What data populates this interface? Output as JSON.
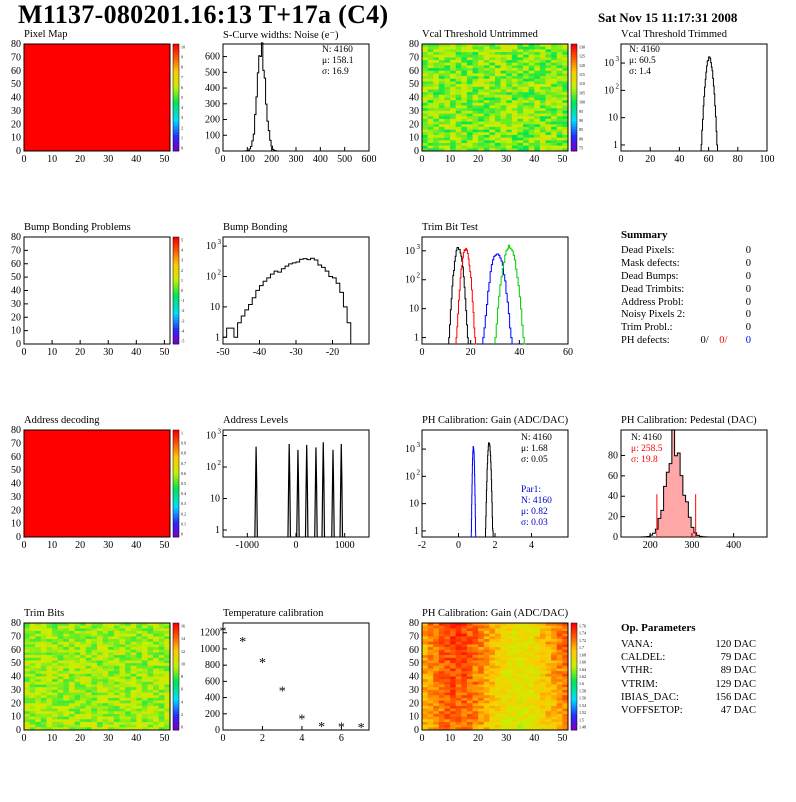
{
  "header": {
    "title": "M1137-080201.16:13 T+17a (C4)",
    "date": "Sat Nov 15 11:17:31 2008"
  },
  "panels": {
    "pixel_map": {
      "title": "Pixel Map"
    },
    "scurve": {
      "title": "S-Curve widths: Noise (e⁻)",
      "stats": [
        "N: 4160",
        "μ: 158.1",
        "σ: 16.9"
      ]
    },
    "vcal_untrimmed": {
      "title": "Vcal Threshold Untrimmed"
    },
    "vcal_trimmed": {
      "title": "Vcal Threshold Trimmed",
      "stats": [
        "N: 4160",
        "μ: 60.5",
        "σ:  1.4"
      ]
    },
    "bump_problems": {
      "title": "Bump Bonding Problems"
    },
    "bump_bonding": {
      "title": "Bump Bonding"
    },
    "trim_bit_test": {
      "title": "Trim Bit Test"
    },
    "address_decoding": {
      "title": "Address decoding"
    },
    "address_levels": {
      "title": "Address Levels"
    },
    "ph_gain": {
      "title": "PH Calibration: Gain (ADC/DAC)",
      "stats": [
        "N: 4160",
        "μ: 1.68",
        "σ: 0.05"
      ],
      "par1": [
        "Par1:",
        "N: 4160",
        "μ: 0.82",
        "σ: 0.03"
      ]
    },
    "ph_pedestal": {
      "title": "PH Calibration: Pedestal (DAC)",
      "stats": [
        "N: 4160",
        "μ: 258.5",
        "σ: 19.8"
      ]
    },
    "trim_bits": {
      "title": "Trim Bits"
    },
    "temperature": {
      "title": "Temperature calibration"
    },
    "ph_gain_map": {
      "title": "PH Calibration: Gain (ADC/DAC)"
    }
  },
  "summary": {
    "heading": "Summary",
    "rows": [
      {
        "label": "Dead Pixels:",
        "value": "0"
      },
      {
        "label": "Mask defects:",
        "value": "0"
      },
      {
        "label": "Dead Bumps:",
        "value": "0"
      },
      {
        "label": "Dead Trimbits:",
        "value": "0"
      },
      {
        "label": "Address Probl:",
        "value": "0"
      },
      {
        "label": "Noisy Pixels 2:",
        "value": "0"
      },
      {
        "label": "Trim Probl.:",
        "value": "0"
      }
    ],
    "ph_defects": {
      "label": "PH defects:",
      "values": [
        "0/",
        "0/",
        "0"
      ],
      "colors": [
        "#000000",
        "#ff0000",
        "#0000ff"
      ]
    }
  },
  "op_params": {
    "heading": "Op. Parameters",
    "rows": [
      {
        "label": "VANA:",
        "value": "120 DAC"
      },
      {
        "label": "CALDEL:",
        "value": "79 DAC"
      },
      {
        "label": "VTHR:",
        "value": "89 DAC"
      },
      {
        "label": "VTRIM:",
        "value": "129 DAC"
      },
      {
        "label": "IBIAS_DAC:",
        "value": "156 DAC"
      },
      {
        "label": "VOFFSETOP:",
        "value": "47 DAC"
      }
    ]
  },
  "chart_data": [
    {
      "id": "pixel_map",
      "type": "heatmap",
      "title": "Pixel Map",
      "xlim": [
        0,
        52
      ],
      "ylim": [
        0,
        80
      ],
      "xticks": [
        0,
        10,
        20,
        30,
        40,
        50
      ],
      "yticks": [
        0,
        10,
        20,
        30,
        40,
        50,
        60,
        70,
        80
      ],
      "fill": "uniform",
      "value": 10,
      "zlim": [
        0,
        10
      ],
      "palette_ticks": [
        "10",
        "9",
        "8",
        "7",
        "6",
        "5",
        "4",
        "3",
        "2",
        "1",
        "0"
      ]
    },
    {
      "id": "scurve",
      "type": "bar",
      "title": "S-Curve widths: Noise (e⁻)",
      "xlim": [
        0,
        600
      ],
      "ylim": [
        0,
        680
      ],
      "xticks": [
        0,
        100,
        200,
        300,
        400,
        500,
        600
      ],
      "yticks": [
        0,
        100,
        200,
        300,
        400,
        500,
        600
      ],
      "log": false,
      "mean": 158.1,
      "sigma": 16.9,
      "peak": 640,
      "entries": 4160,
      "color": "#000000"
    },
    {
      "id": "vcal_untrimmed",
      "type": "heatmap",
      "title": "Vcal Threshold Untrimmed",
      "xlim": [
        0,
        52
      ],
      "ylim": [
        0,
        80
      ],
      "xticks": [
        0,
        10,
        20,
        30,
        40,
        50
      ],
      "yticks": [
        0,
        10,
        20,
        30,
        40,
        50,
        60,
        70,
        80
      ],
      "fill": "noise",
      "mean": 0.55,
      "spread": 0.1,
      "palette_ticks": [
        "130",
        "125",
        "120",
        "115",
        "110",
        "105",
        "100",
        "95",
        "90",
        "85",
        "80",
        "75"
      ]
    },
    {
      "id": "vcal_trimmed",
      "type": "bar",
      "title": "Vcal Threshold Trimmed",
      "xlim": [
        0,
        100
      ],
      "ylim": [
        0.6,
        5000
      ],
      "xticks": [
        0,
        20,
        40,
        60,
        80,
        100
      ],
      "yticks": [
        1,
        10,
        100,
        1000
      ],
      "log": true,
      "mean": 60.5,
      "sigma": 1.4,
      "peak": 1500,
      "entries": 4160,
      "color": "#000000"
    },
    {
      "id": "bump_problems",
      "type": "heatmap",
      "title": "Bump Bonding Problems",
      "xlim": [
        0,
        52
      ],
      "ylim": [
        0,
        80
      ],
      "xticks": [
        0,
        10,
        20,
        30,
        40,
        50
      ],
      "yticks": [
        0,
        10,
        20,
        30,
        40,
        50,
        60,
        70,
        80
      ],
      "fill": "empty",
      "palette_ticks": [
        "5",
        "4",
        "3",
        "2",
        "1",
        "0",
        "-1",
        "-2",
        "-3",
        "-4",
        "-5"
      ]
    },
    {
      "id": "bump_bonding",
      "type": "bar",
      "title": "Bump Bonding",
      "xlim": [
        -50,
        -10
      ],
      "ylim": [
        0.6,
        2000
      ],
      "xticks": [
        -50,
        -40,
        -30,
        -20
      ],
      "yticks": [
        1,
        10,
        100,
        1000
      ],
      "log": true,
      "step": 1,
      "points": [
        [
          -50,
          1
        ],
        [
          -49,
          2
        ],
        [
          -48,
          2
        ],
        [
          -47,
          1
        ],
        [
          -46,
          3
        ],
        [
          -45,
          5
        ],
        [
          -44,
          8
        ],
        [
          -43,
          12
        ],
        [
          -42,
          20
        ],
        [
          -41,
          35
        ],
        [
          -40,
          50
        ],
        [
          -39,
          70
        ],
        [
          -38,
          90
        ],
        [
          -37,
          120
        ],
        [
          -36,
          150
        ],
        [
          -35,
          140
        ],
        [
          -34,
          180
        ],
        [
          -33,
          220
        ],
        [
          -32,
          260
        ],
        [
          -31,
          280
        ],
        [
          -30,
          300
        ],
        [
          -29,
          370
        ],
        [
          -28,
          390
        ],
        [
          -27,
          360
        ],
        [
          -26,
          400
        ],
        [
          -25,
          350
        ],
        [
          -24,
          240
        ],
        [
          -23,
          200
        ],
        [
          -22,
          150
        ],
        [
          -21,
          100
        ],
        [
          -20,
          90
        ],
        [
          -19,
          60
        ],
        [
          -18,
          30
        ],
        [
          -17,
          10
        ],
        [
          -16,
          3
        ],
        [
          -15,
          0
        ]
      ],
      "color": "#000000"
    },
    {
      "id": "trim_bit_test",
      "type": "bar",
      "title": "Trim Bit Test",
      "xlim": [
        0,
        60
      ],
      "ylim": [
        0.6,
        3000
      ],
      "xticks": [
        0,
        20,
        40,
        60
      ],
      "yticks": [
        1,
        10,
        100,
        1000
      ],
      "log": true,
      "series": [
        {
          "mean": 15,
          "sigma": 1.0,
          "peak": 1300,
          "color": "#000000"
        },
        {
          "mean": 18,
          "sigma": 1.0,
          "peak": 1100,
          "color": "#ff0000"
        },
        {
          "mean": 31,
          "sigma": 1.5,
          "peak": 900,
          "color": "#0000ff"
        },
        {
          "mean": 36,
          "sigma": 1.5,
          "peak": 1400,
          "color": "#00cc00"
        }
      ]
    },
    {
      "id": "address_decoding",
      "type": "heatmap",
      "title": "Address decoding",
      "xlim": [
        0,
        52
      ],
      "ylim": [
        0,
        80
      ],
      "xticks": [
        0,
        10,
        20,
        30,
        40,
        50
      ],
      "yticks": [
        0,
        10,
        20,
        30,
        40,
        50,
        60,
        70,
        80
      ],
      "fill": "uniform",
      "value": 1,
      "zlim": [
        0,
        1
      ],
      "palette_ticks": [
        "1",
        "0.9",
        "0.8",
        "0.7",
        "0.6",
        "0.5",
        "0.4",
        "0.3",
        "0.2",
        "0.1",
        "0"
      ]
    },
    {
      "id": "address_levels",
      "type": "bar",
      "title": "Address Levels",
      "xlim": [
        -1500,
        1500
      ],
      "ylim": [
        0.6,
        1500
      ],
      "xticks": [
        -1000,
        0,
        1000
      ],
      "yticks": [
        1,
        10,
        100,
        1000
      ],
      "log": true,
      "peaks": [
        -820,
        -140,
        40,
        220,
        410,
        560,
        760,
        930
      ],
      "peak_height": 500,
      "color": "#000000"
    },
    {
      "id": "ph_gain",
      "type": "bar",
      "title": "PH Calibration: Gain (ADC/DAC)",
      "xlim": [
        -2,
        6
      ],
      "ylim": [
        0.6,
        5000
      ],
      "xticks": [
        -2,
        0,
        2,
        4
      ],
      "yticks": [
        1,
        10,
        100,
        1000
      ],
      "log": true,
      "series": [
        {
          "mean": 1.68,
          "sigma": 0.05,
          "peak": 1700,
          "color": "#000000"
        },
        {
          "mean": 0.82,
          "sigma": 0.03,
          "peak": 1300,
          "color": "#0000ff"
        }
      ]
    },
    {
      "id": "ph_pedestal",
      "type": "bar",
      "title": "PH Calibration: Pedestal (DAC)",
      "xlim": [
        130,
        480
      ],
      "ylim": [
        0,
        105
      ],
      "xticks": [
        200,
        300,
        400
      ],
      "yticks": [
        0,
        20,
        40,
        60,
        80
      ],
      "log": false,
      "mean": 258.5,
      "sigma": 19.8,
      "peak": 94,
      "color": "#000000",
      "fill_color": "#ff0000",
      "fit_lines": [
        216,
        309
      ]
    },
    {
      "id": "trim_bits",
      "type": "heatmap",
      "title": "Trim Bits",
      "xlim": [
        0,
        52
      ],
      "ylim": [
        0,
        80
      ],
      "xticks": [
        0,
        10,
        20,
        30,
        40,
        50
      ],
      "yticks": [
        0,
        10,
        20,
        30,
        40,
        50,
        60,
        70,
        80
      ],
      "fill": "noise",
      "mean": 0.57,
      "spread": 0.08,
      "palette_ticks": [
        "16",
        "14",
        "12",
        "10",
        "8",
        "6",
        "4",
        "2",
        "0"
      ]
    },
    {
      "id": "temperature",
      "type": "scatter",
      "title": "Temperature calibration",
      "xlim": [
        0,
        7.4
      ],
      "ylim": [
        0,
        1320
      ],
      "xticks": [
        0,
        2,
        4,
        6
      ],
      "yticks": [
        0,
        200,
        400,
        600,
        800,
        1000,
        1200
      ],
      "x": [
        0,
        1,
        2,
        3,
        4,
        5,
        6,
        7
      ],
      "y": [
        1225,
        1100,
        840,
        490,
        140,
        50,
        45,
        40
      ],
      "marker": "*"
    },
    {
      "id": "ph_gain_map",
      "type": "heatmap",
      "title": "PH Calibration: Gain (ADC/DAC)",
      "xlim": [
        0,
        52
      ],
      "ylim": [
        0,
        80
      ],
      "xticks": [
        0,
        10,
        20,
        30,
        40,
        50
      ],
      "yticks": [
        0,
        10,
        20,
        30,
        40,
        50,
        60,
        70,
        80
      ],
      "fill": "gradient",
      "mean": 0.8,
      "spread": 0.07,
      "palette_ticks": [
        "1.76",
        "1.74",
        "1.72",
        "1.7",
        "1.68",
        "1.66",
        "1.64",
        "1.62",
        "1.6",
        "1.58",
        "1.56",
        "1.54",
        "1.52",
        "1.5",
        "1.48"
      ]
    }
  ]
}
